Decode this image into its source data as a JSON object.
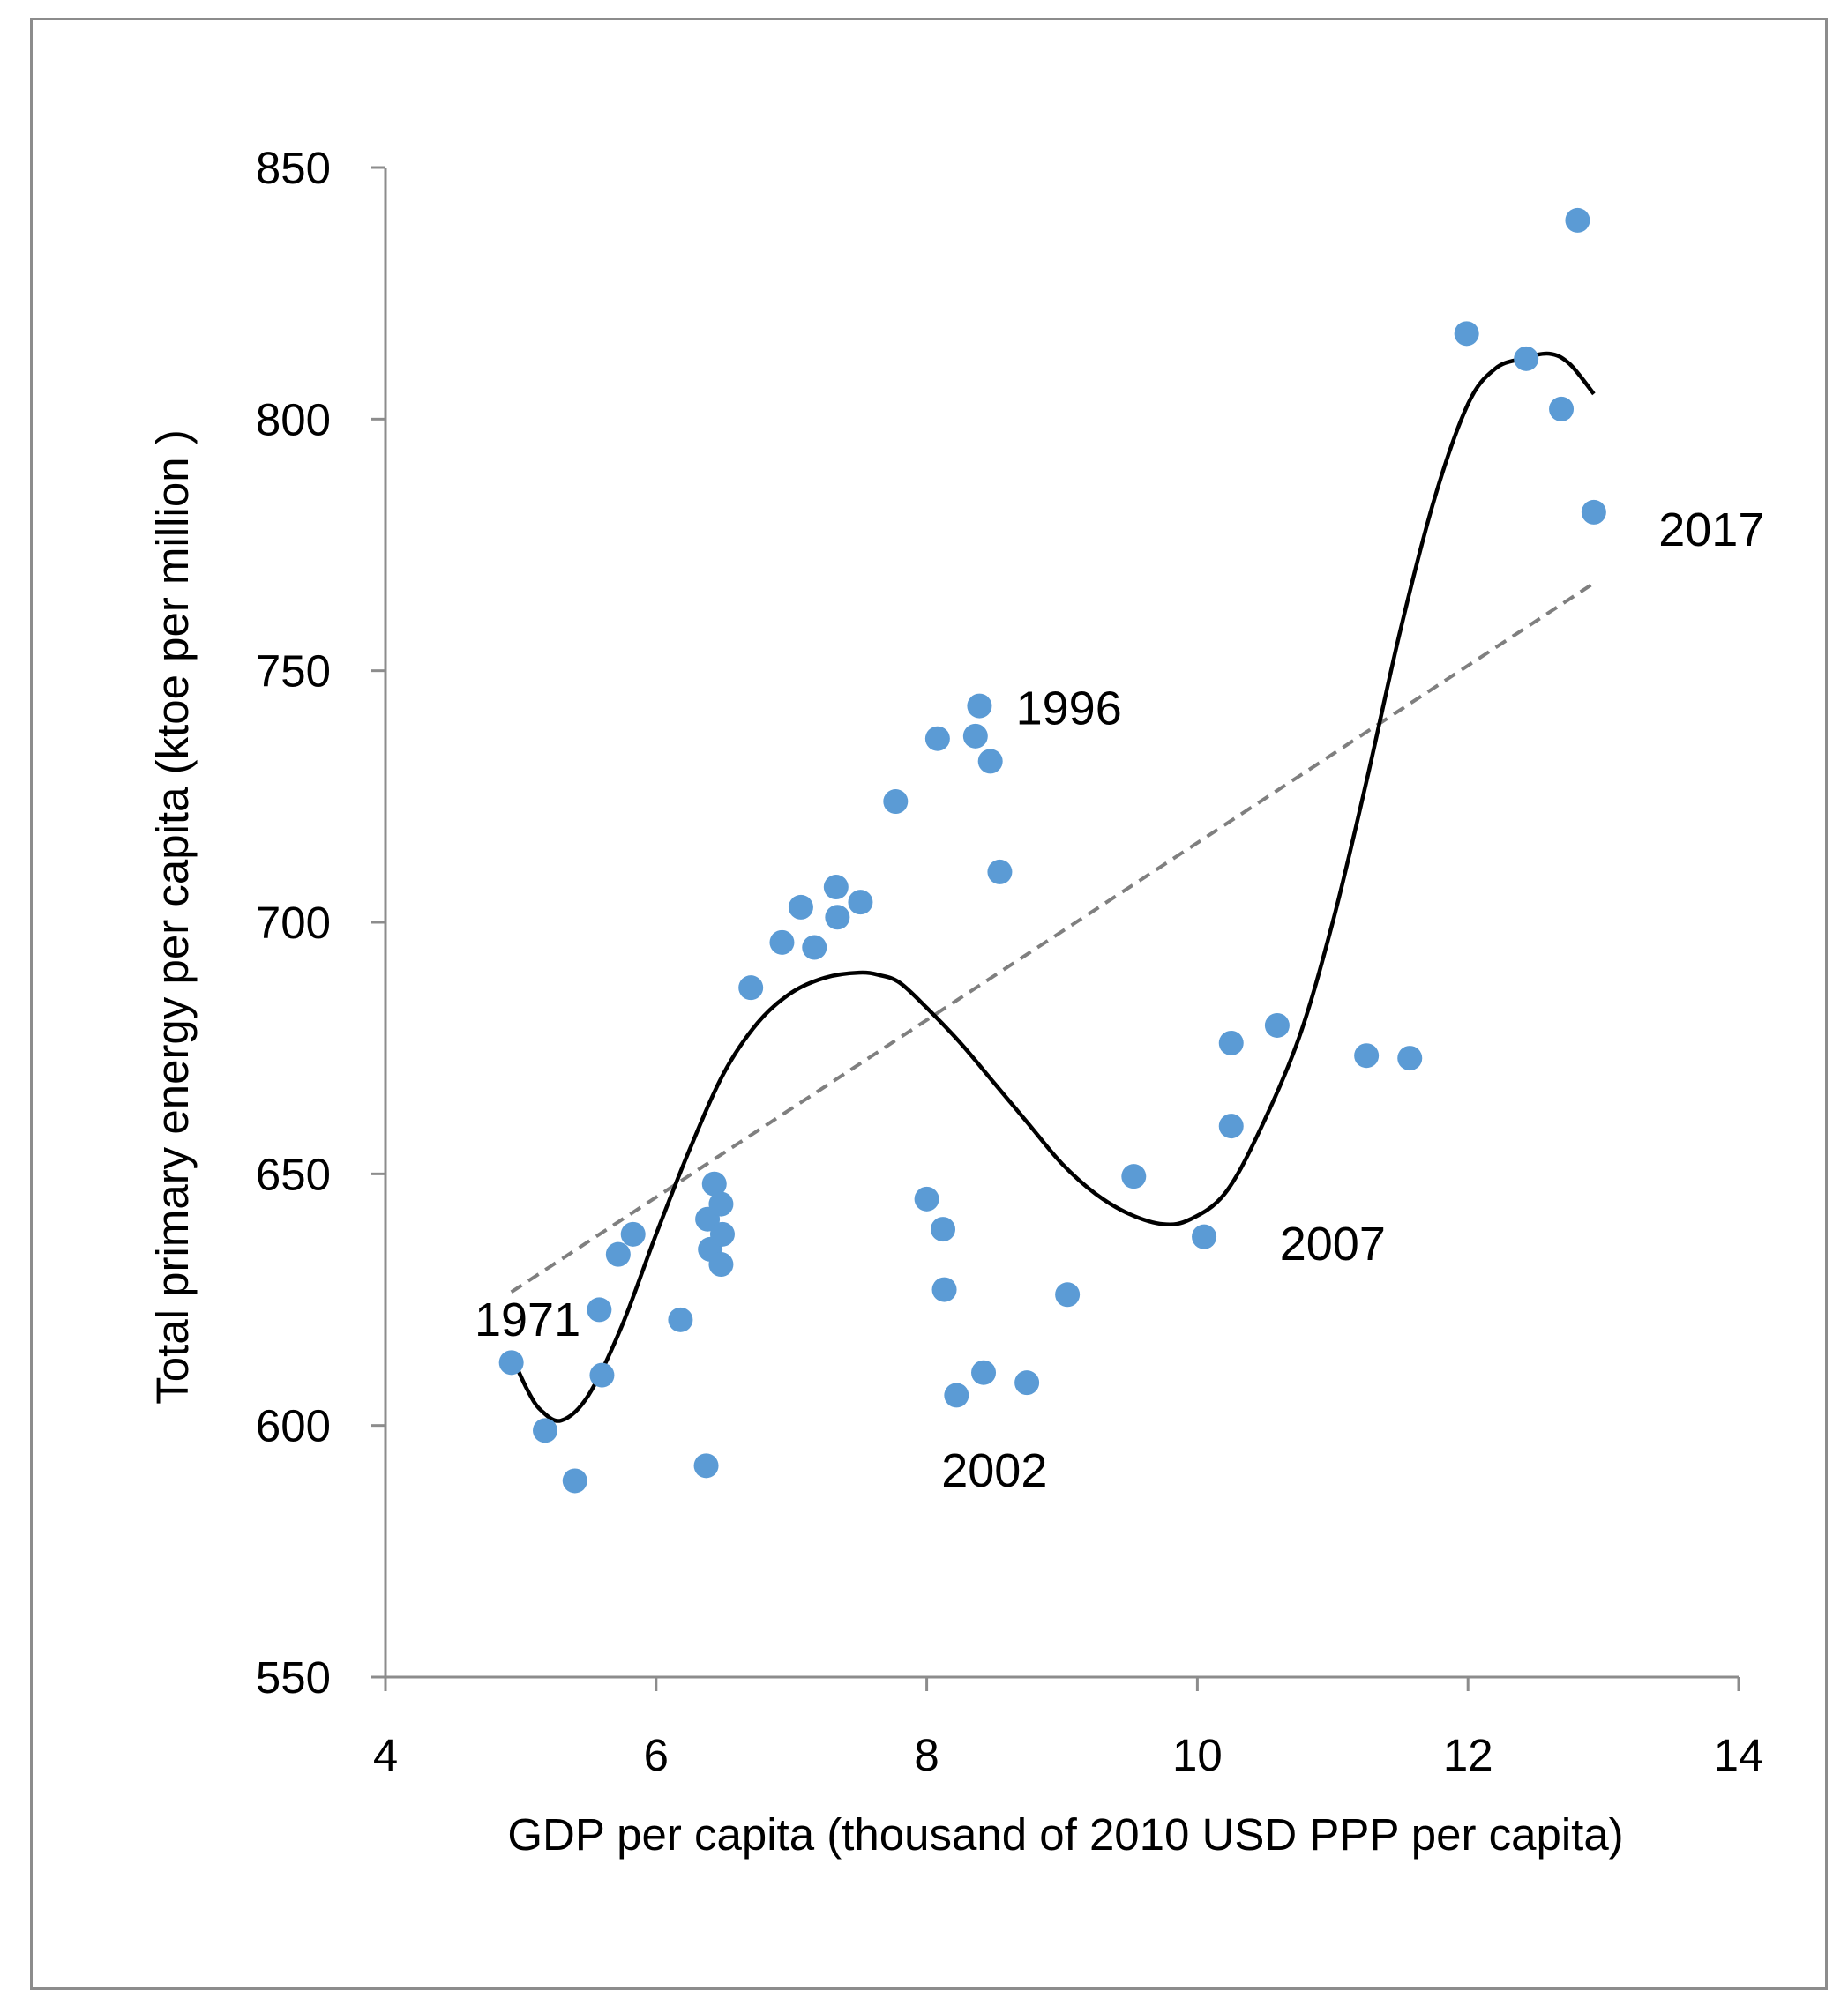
{
  "chart_data": {
    "type": "scatter",
    "title": "",
    "xlabel": "GDP per capita  (thousand of 2010 USD PPP per capita)",
    "ylabel": "Total primary energy per capita (ktoe per million )",
    "xlim": [
      4,
      14
    ],
    "ylim": [
      550,
      850
    ],
    "xticks": [
      4,
      6,
      8,
      10,
      12,
      14
    ],
    "yticks": [
      550,
      600,
      650,
      700,
      750,
      800,
      850
    ],
    "grid": false,
    "point_color": "#5b9bd5",
    "series": [
      {
        "name": "observations",
        "points": [
          [
            4.93,
            612.5
          ],
          [
            5.18,
            599
          ],
          [
            5.4,
            589
          ],
          [
            5.6,
            610
          ],
          [
            5.58,
            623
          ],
          [
            5.72,
            634
          ],
          [
            5.83,
            638
          ],
          [
            6.18,
            621
          ],
          [
            6.37,
            592
          ],
          [
            6.38,
            641
          ],
          [
            6.4,
            635
          ],
          [
            6.43,
            648
          ],
          [
            6.48,
            644
          ],
          [
            6.49,
            638
          ],
          [
            6.48,
            632
          ],
          [
            6.7,
            687
          ],
          [
            6.93,
            696
          ],
          [
            7.07,
            703
          ],
          [
            7.17,
            695
          ],
          [
            7.33,
            707
          ],
          [
            7.34,
            701
          ],
          [
            7.51,
            704
          ],
          [
            7.77,
            724
          ],
          [
            8.08,
            736.5
          ],
          [
            8.36,
            737
          ],
          [
            8.39,
            743
          ],
          [
            8.47,
            732
          ],
          [
            8.54,
            710
          ],
          [
            8.0,
            645
          ],
          [
            8.12,
            639
          ],
          [
            8.13,
            627
          ],
          [
            8.22,
            606
          ],
          [
            8.42,
            610.5
          ],
          [
            8.74,
            608.5
          ],
          [
            9.04,
            626
          ],
          [
            9.53,
            649.5
          ],
          [
            10.05,
            637.5
          ],
          [
            10.25,
            676
          ],
          [
            10.25,
            659.5
          ],
          [
            10.59,
            679.5
          ],
          [
            11.25,
            673.5
          ],
          [
            11.57,
            673
          ],
          [
            11.99,
            817
          ],
          [
            12.43,
            812
          ],
          [
            12.69,
            802
          ],
          [
            12.81,
            839.5
          ],
          [
            12.93,
            781.5
          ]
        ]
      }
    ],
    "linear_fit": {
      "x_range": [
        4.93,
        12.93
      ],
      "intercept": 539.7,
      "slope": 17.61,
      "color": "#7f7f7f"
    },
    "poly_fit": {
      "color": "#000000",
      "knots": [
        [
          4.93,
          614
        ],
        [
          5.05,
          607
        ],
        [
          5.15,
          603
        ],
        [
          5.3,
          601
        ],
        [
          5.5,
          606
        ],
        [
          5.75,
          620
        ],
        [
          6.0,
          638
        ],
        [
          6.25,
          655
        ],
        [
          6.5,
          670
        ],
        [
          6.75,
          680
        ],
        [
          7.0,
          686
        ],
        [
          7.25,
          689
        ],
        [
          7.5,
          690
        ],
        [
          7.65,
          689.5
        ],
        [
          7.8,
          688
        ],
        [
          8.0,
          683
        ],
        [
          8.25,
          676
        ],
        [
          8.5,
          668
        ],
        [
          8.75,
          660
        ],
        [
          9.0,
          652
        ],
        [
          9.25,
          646
        ],
        [
          9.5,
          642
        ],
        [
          9.75,
          640
        ],
        [
          9.95,
          641
        ],
        [
          10.2,
          646
        ],
        [
          10.45,
          658
        ],
        [
          10.75,
          677
        ],
        [
          11.0,
          700
        ],
        [
          11.25,
          728
        ],
        [
          11.5,
          758
        ],
        [
          11.75,
          784
        ],
        [
          12.0,
          803
        ],
        [
          12.2,
          810
        ],
        [
          12.4,
          812
        ],
        [
          12.6,
          813
        ],
        [
          12.75,
          811
        ],
        [
          12.93,
          805
        ]
      ]
    },
    "annotations": [
      {
        "text": "1971",
        "x": 5.05,
        "y": 621
      },
      {
        "text": "1996",
        "x": 9.05,
        "y": 742.5
      },
      {
        "text": "2002",
        "x": 8.5,
        "y": 591
      },
      {
        "text": "2007",
        "x": 11.0,
        "y": 636
      },
      {
        "text": "2017",
        "x": 13.8,
        "y": 778
      }
    ]
  }
}
